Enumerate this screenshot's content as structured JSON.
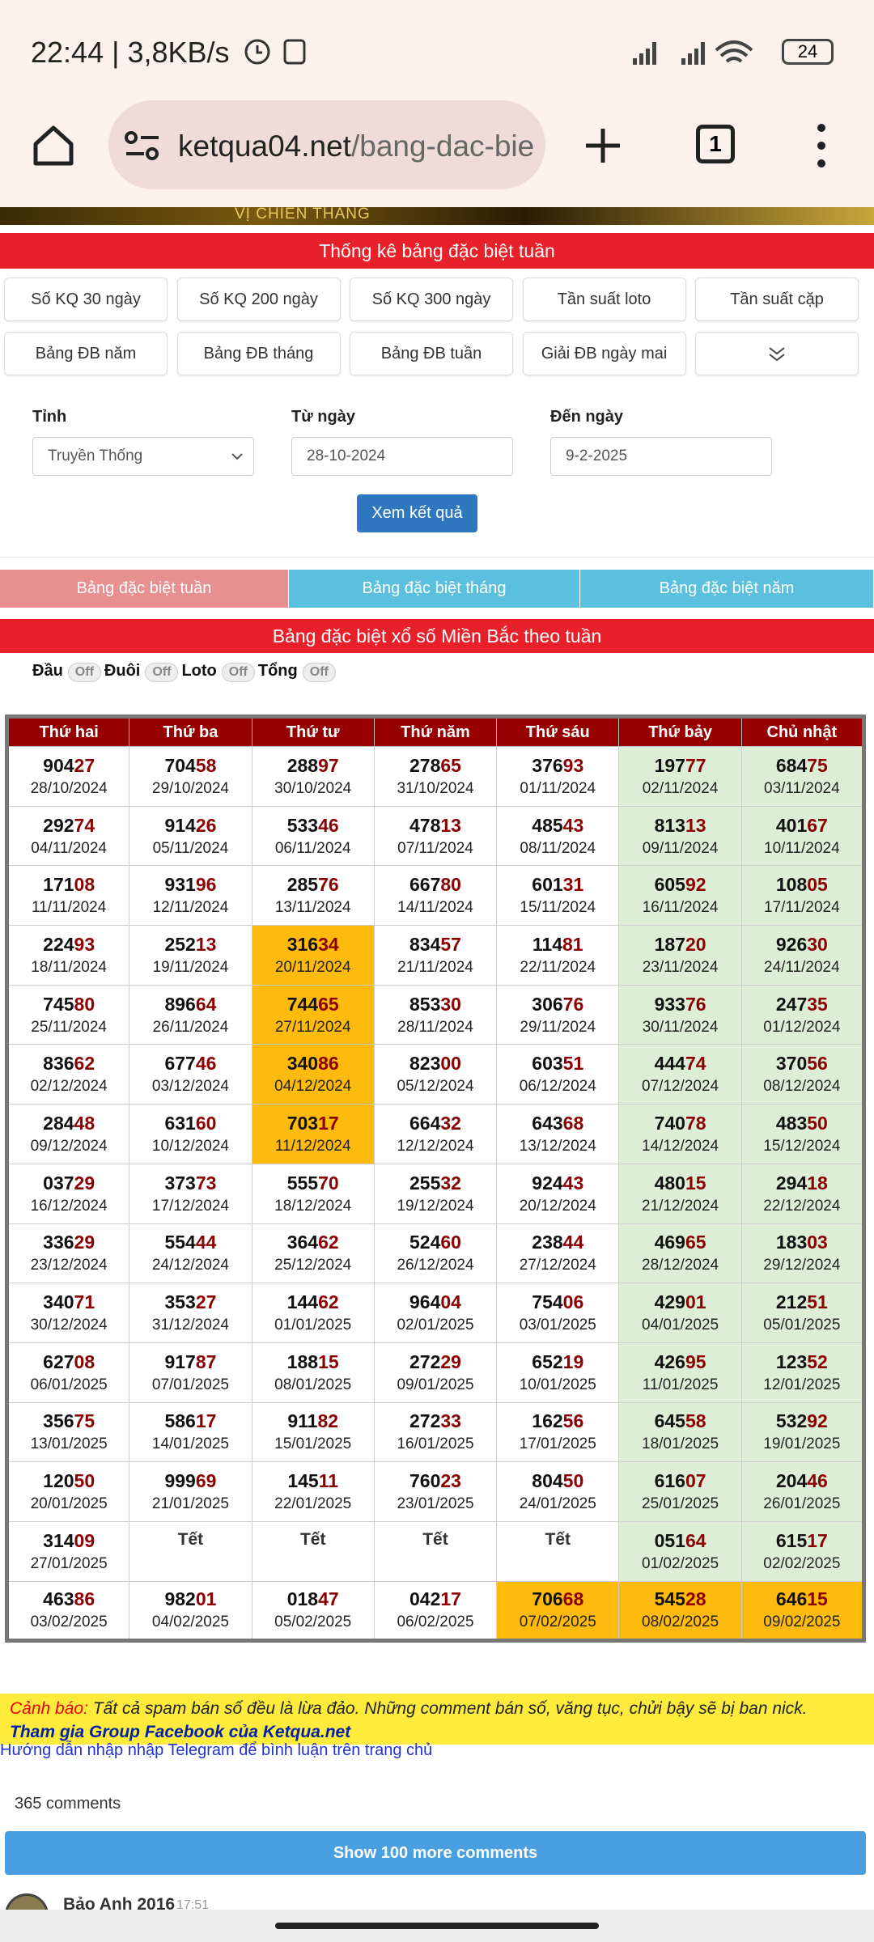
{
  "status_bar": {
    "time": "22:44 | 3,8KB/s",
    "battery": "24"
  },
  "browser": {
    "url_domain": "ketqua04.net",
    "url_path": "/bang-dac-bie",
    "tab_count": "1"
  },
  "banner": "VỊ CHIẾN THẮNG",
  "section_title": "Thống kê bảng đặc biệt tuần",
  "nav_buttons": [
    "Số KQ 30 ngày",
    "Số KQ 200 ngày",
    "Số KQ 300 ngày",
    "Tần suất loto",
    "Tần suất cặp",
    "Bảng ĐB năm",
    "Bảng ĐB tháng",
    "Bảng ĐB tuần",
    "Giải ĐB ngày mai"
  ],
  "form": {
    "province_label": "Tỉnh",
    "province": "Truyền Thống",
    "from_label": "Từ ngày",
    "from": "28-10-2024",
    "to_label": "Đến ngày",
    "to": "9-2-2025",
    "submit": "Xem kết quả"
  },
  "tabs": [
    "Bảng đặc biệt tuần",
    "Bảng đặc biệt tháng",
    "Bảng đặc biệt năm"
  ],
  "table_title": "Bảng đặc biệt xổ số Miền Bắc theo tuần",
  "toggles": [
    {
      "label": "Đầu",
      "state": "Off"
    },
    {
      "label": "Đuôi",
      "state": "Off"
    },
    {
      "label": "Loto",
      "state": "Off"
    },
    {
      "label": "Tổng",
      "state": "Off"
    }
  ],
  "table": {
    "headers": [
      "Thứ hai",
      "Thứ ba",
      "Thứ tư",
      "Thứ năm",
      "Thứ sáu",
      "Thứ bảy",
      "Chủ nhật"
    ],
    "rows": [
      [
        {
          "n": "90427",
          "d": "28/10/2024"
        },
        {
          "n": "70458",
          "d": "29/10/2024"
        },
        {
          "n": "28897",
          "d": "30/10/2024"
        },
        {
          "n": "27865",
          "d": "31/10/2024"
        },
        {
          "n": "37693",
          "d": "01/11/2024"
        },
        {
          "n": "19777",
          "d": "02/11/2024"
        },
        {
          "n": "68475",
          "d": "03/11/2024"
        }
      ],
      [
        {
          "n": "29274",
          "d": "04/11/2024"
        },
        {
          "n": "91426",
          "d": "05/11/2024"
        },
        {
          "n": "53346",
          "d": "06/11/2024"
        },
        {
          "n": "47813",
          "d": "07/11/2024"
        },
        {
          "n": "48543",
          "d": "08/11/2024"
        },
        {
          "n": "81313",
          "d": "09/11/2024"
        },
        {
          "n": "40167",
          "d": "10/11/2024"
        }
      ],
      [
        {
          "n": "17108",
          "d": "11/11/2024"
        },
        {
          "n": "93196",
          "d": "12/11/2024"
        },
        {
          "n": "28576",
          "d": "13/11/2024"
        },
        {
          "n": "66780",
          "d": "14/11/2024"
        },
        {
          "n": "60131",
          "d": "15/11/2024"
        },
        {
          "n": "60592",
          "d": "16/11/2024"
        },
        {
          "n": "10805",
          "d": "17/11/2024"
        }
      ],
      [
        {
          "n": "22493",
          "d": "18/11/2024"
        },
        {
          "n": "25213",
          "d": "19/11/2024"
        },
        {
          "n": "31634",
          "d": "20/11/2024",
          "hl": true
        },
        {
          "n": "83457",
          "d": "21/11/2024"
        },
        {
          "n": "11481",
          "d": "22/11/2024"
        },
        {
          "n": "18720",
          "d": "23/11/2024"
        },
        {
          "n": "92630",
          "d": "24/11/2024"
        }
      ],
      [
        {
          "n": "74580",
          "d": "25/11/2024"
        },
        {
          "n": "89664",
          "d": "26/11/2024"
        },
        {
          "n": "74465",
          "d": "27/11/2024",
          "hl": true
        },
        {
          "n": "85330",
          "d": "28/11/2024"
        },
        {
          "n": "30676",
          "d": "29/11/2024"
        },
        {
          "n": "93376",
          "d": "30/11/2024"
        },
        {
          "n": "24735",
          "d": "01/12/2024"
        }
      ],
      [
        {
          "n": "83662",
          "d": "02/12/2024"
        },
        {
          "n": "67746",
          "d": "03/12/2024"
        },
        {
          "n": "34086",
          "d": "04/12/2024",
          "hl": true
        },
        {
          "n": "82300",
          "d": "05/12/2024"
        },
        {
          "n": "60351",
          "d": "06/12/2024"
        },
        {
          "n": "44474",
          "d": "07/12/2024"
        },
        {
          "n": "37056",
          "d": "08/12/2024"
        }
      ],
      [
        {
          "n": "28448",
          "d": "09/12/2024"
        },
        {
          "n": "63160",
          "d": "10/12/2024"
        },
        {
          "n": "70317",
          "d": "11/12/2024",
          "hl": true
        },
        {
          "n": "66432",
          "d": "12/12/2024"
        },
        {
          "n": "64368",
          "d": "13/12/2024"
        },
        {
          "n": "74078",
          "d": "14/12/2024"
        },
        {
          "n": "48350",
          "d": "15/12/2024"
        }
      ],
      [
        {
          "n": "03729",
          "d": "16/12/2024"
        },
        {
          "n": "37373",
          "d": "17/12/2024"
        },
        {
          "n": "55570",
          "d": "18/12/2024"
        },
        {
          "n": "25532",
          "d": "19/12/2024"
        },
        {
          "n": "92443",
          "d": "20/12/2024"
        },
        {
          "n": "48015",
          "d": "21/12/2024"
        },
        {
          "n": "29418",
          "d": "22/12/2024"
        }
      ],
      [
        {
          "n": "33629",
          "d": "23/12/2024"
        },
        {
          "n": "55444",
          "d": "24/12/2024"
        },
        {
          "n": "36462",
          "d": "25/12/2024"
        },
        {
          "n": "52460",
          "d": "26/12/2024"
        },
        {
          "n": "23844",
          "d": "27/12/2024"
        },
        {
          "n": "46965",
          "d": "28/12/2024"
        },
        {
          "n": "18303",
          "d": "29/12/2024"
        }
      ],
      [
        {
          "n": "34071",
          "d": "30/12/2024"
        },
        {
          "n": "35327",
          "d": "31/12/2024"
        },
        {
          "n": "14462",
          "d": "01/01/2025"
        },
        {
          "n": "96404",
          "d": "02/01/2025"
        },
        {
          "n": "75406",
          "d": "03/01/2025"
        },
        {
          "n": "42901",
          "d": "04/01/2025"
        },
        {
          "n": "21251",
          "d": "05/01/2025"
        }
      ],
      [
        {
          "n": "62708",
          "d": "06/01/2025"
        },
        {
          "n": "91787",
          "d": "07/01/2025"
        },
        {
          "n": "18815",
          "d": "08/01/2025"
        },
        {
          "n": "27229",
          "d": "09/01/2025"
        },
        {
          "n": "65219",
          "d": "10/01/2025"
        },
        {
          "n": "42695",
          "d": "11/01/2025"
        },
        {
          "n": "12352",
          "d": "12/01/2025"
        }
      ],
      [
        {
          "n": "35675",
          "d": "13/01/2025"
        },
        {
          "n": "58617",
          "d": "14/01/2025"
        },
        {
          "n": "91182",
          "d": "15/01/2025"
        },
        {
          "n": "27233",
          "d": "16/01/2025"
        },
        {
          "n": "16256",
          "d": "17/01/2025"
        },
        {
          "n": "64558",
          "d": "18/01/2025"
        },
        {
          "n": "53292",
          "d": "19/01/2025"
        }
      ],
      [
        {
          "n": "12050",
          "d": "20/01/2025"
        },
        {
          "n": "99969",
          "d": "21/01/2025"
        },
        {
          "n": "14511",
          "d": "22/01/2025"
        },
        {
          "n": "76023",
          "d": "23/01/2025"
        },
        {
          "n": "80450",
          "d": "24/01/2025"
        },
        {
          "n": "61607",
          "d": "25/01/2025"
        },
        {
          "n": "20446",
          "d": "26/01/2025"
        }
      ],
      [
        {
          "n": "31409",
          "d": "27/01/2025"
        },
        {
          "t": "Tết"
        },
        {
          "t": "Tết"
        },
        {
          "t": "Tết"
        },
        {
          "t": "Tết"
        },
        {
          "n": "05164",
          "d": "01/02/2025"
        },
        {
          "n": "61517",
          "d": "02/02/2025"
        }
      ],
      [
        {
          "n": "46386",
          "d": "03/02/2025"
        },
        {
          "n": "98201",
          "d": "04/02/2025"
        },
        {
          "n": "01847",
          "d": "05/02/2025"
        },
        {
          "n": "04217",
          "d": "06/02/2025"
        },
        {
          "n": "70668",
          "d": "07/02/2025",
          "hl": true
        },
        {
          "n": "54528",
          "d": "08/02/2025",
          "hl": true
        },
        {
          "n": "64615",
          "d": "09/02/2025",
          "hl": true
        }
      ]
    ]
  },
  "warning": {
    "label": "Cảnh báo:",
    "text": "Tất cả spam bán số đều là lừa đảo. Những comment bán số, văng tục, chửi bậy sẽ bị ban nick."
  },
  "facebook": "Tham gia Group Facebook của Ketqua.net",
  "telegram": "Hướng dẫn nhập nhập Telegram để bình luận trên trang chủ",
  "comments": {
    "count": "365 comments",
    "more": "Show 100 more comments",
    "first_author": "Bảo Anh 2016",
    "first_time": "17:51"
  }
}
